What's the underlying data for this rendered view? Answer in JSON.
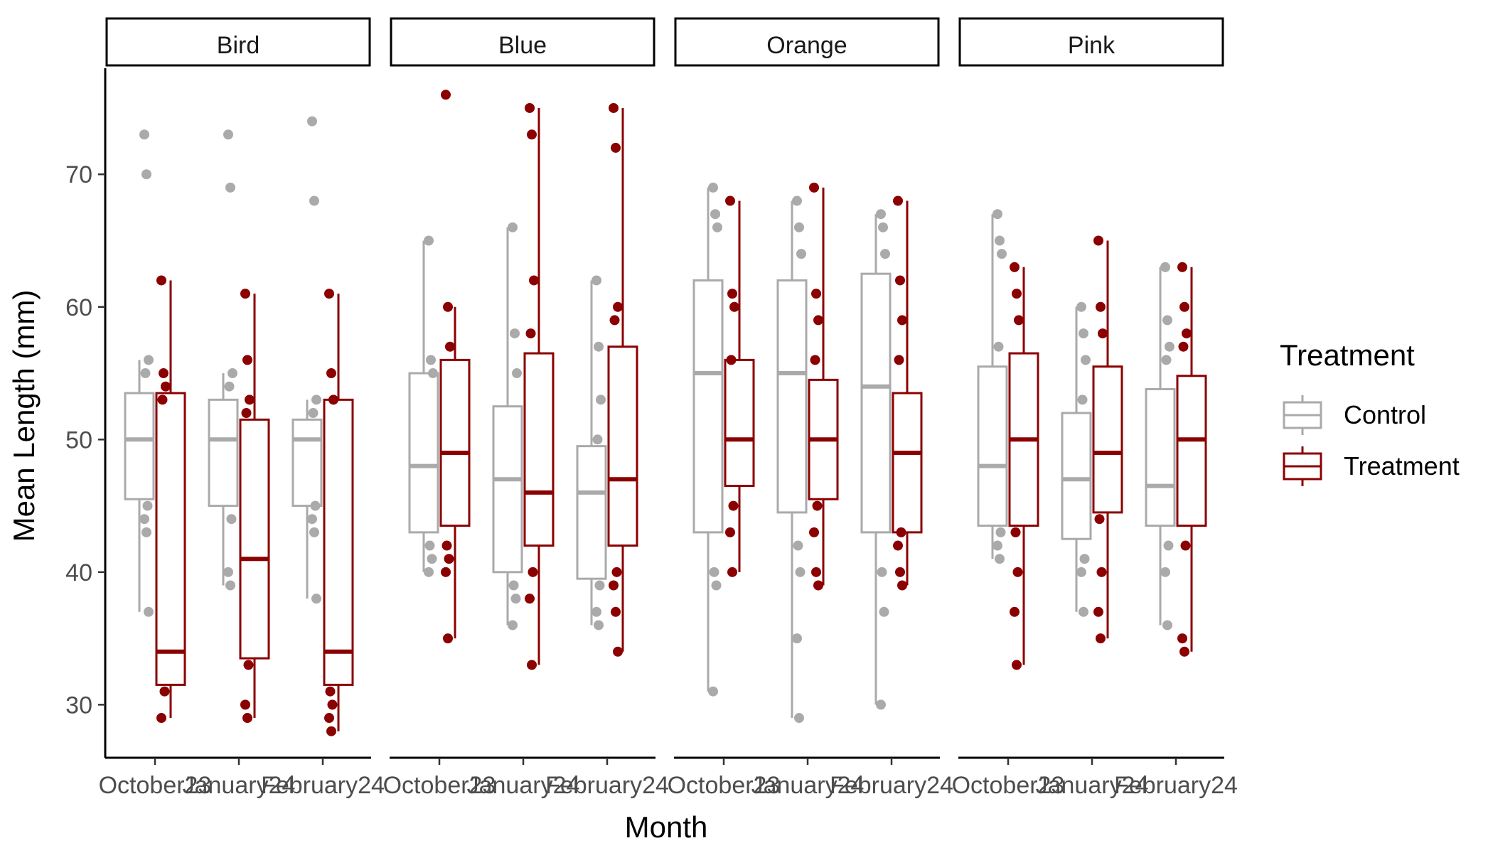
{
  "chart_data": {
    "type": "boxplot",
    "xlabel": "Month",
    "ylabel": "Mean Length (mm)",
    "ylim": [
      26,
      78
    ],
    "yticks": [
      30,
      40,
      50,
      60,
      70
    ],
    "categories": [
      "October23",
      "January24",
      "February24"
    ],
    "facets": [
      "Bird",
      "Blue",
      "Orange",
      "Pink"
    ],
    "legend": {
      "title": "Treatment",
      "placement": "right",
      "entries": [
        {
          "name": "Control",
          "color": "#aaaaaa"
        },
        {
          "name": "Treatment",
          "color": "#8b0000"
        }
      ]
    },
    "grid": false,
    "panels": [
      {
        "facet": "Bird",
        "groups": [
          {
            "month": "October23",
            "treatment": "Control",
            "lower": 37,
            "q1": 45.5,
            "median": 50,
            "q3": 53.5,
            "upper": 56,
            "points": [
              73,
              70,
              56,
              55,
              45,
              44,
              43,
              37
            ]
          },
          {
            "month": "October23",
            "treatment": "Treatment",
            "lower": 29,
            "q1": 31.5,
            "median": 34,
            "q3": 53.5,
            "upper": 62,
            "points": [
              62,
              55,
              54,
              53,
              31,
              29
            ]
          },
          {
            "month": "January24",
            "treatment": "Control",
            "lower": 39,
            "q1": 45,
            "median": 50,
            "q3": 53,
            "upper": 55,
            "points": [
              73,
              69,
              55,
              54,
              44,
              40,
              39
            ]
          },
          {
            "month": "January24",
            "treatment": "Treatment",
            "lower": 29,
            "q1": 33.5,
            "median": 41,
            "q3": 51.5,
            "upper": 61,
            "points": [
              61,
              56,
              53,
              52,
              33,
              30,
              29
            ]
          },
          {
            "month": "February24",
            "treatment": "Control",
            "lower": 38,
            "q1": 45,
            "median": 50,
            "q3": 51.5,
            "upper": 53,
            "points": [
              74,
              68,
              53,
              52,
              45,
              44,
              43,
              38
            ]
          },
          {
            "month": "February24",
            "treatment": "Treatment",
            "lower": 28,
            "q1": 31.5,
            "median": 34,
            "q3": 53,
            "upper": 61,
            "points": [
              61,
              55,
              53,
              31,
              30,
              29,
              28
            ]
          }
        ]
      },
      {
        "facet": "Blue",
        "groups": [
          {
            "month": "October23",
            "treatment": "Control",
            "lower": 40,
            "q1": 43,
            "median": 48,
            "q3": 55,
            "upper": 65,
            "points": [
              65,
              56,
              55,
              42,
              41,
              40
            ]
          },
          {
            "month": "October23",
            "treatment": "Treatment",
            "lower": 35,
            "q1": 43.5,
            "median": 49,
            "q3": 56,
            "upper": 60,
            "points": [
              76,
              60,
              57,
              42,
              41,
              40,
              35
            ]
          },
          {
            "month": "January24",
            "treatment": "Control",
            "lower": 36,
            "q1": 40,
            "median": 47,
            "q3": 52.5,
            "upper": 66,
            "points": [
              66,
              58,
              55,
              39,
              38,
              36
            ]
          },
          {
            "month": "January24",
            "treatment": "Treatment",
            "lower": 33,
            "q1": 42,
            "median": 46,
            "q3": 56.5,
            "upper": 75,
            "points": [
              75,
              73,
              62,
              58,
              40,
              38,
              33
            ]
          },
          {
            "month": "February24",
            "treatment": "Control",
            "lower": 36,
            "q1": 39.5,
            "median": 46,
            "q3": 49.5,
            "upper": 62,
            "points": [
              62,
              57,
              53,
              50,
              39,
              37,
              36
            ]
          },
          {
            "month": "February24",
            "treatment": "Treatment",
            "lower": 34,
            "q1": 42,
            "median": 47,
            "q3": 57,
            "upper": 75,
            "points": [
              75,
              72,
              60,
              59,
              40,
              39,
              37,
              34
            ]
          }
        ]
      },
      {
        "facet": "Orange",
        "groups": [
          {
            "month": "October23",
            "treatment": "Control",
            "lower": 31,
            "q1": 43,
            "median": 55,
            "q3": 62,
            "upper": 69,
            "points": [
              69,
              67,
              66,
              40,
              39,
              31
            ]
          },
          {
            "month": "October23",
            "treatment": "Treatment",
            "lower": 40,
            "q1": 46.5,
            "median": 50,
            "q3": 56,
            "upper": 68,
            "points": [
              68,
              61,
              60,
              56,
              45,
              43,
              40
            ]
          },
          {
            "month": "January24",
            "treatment": "Control",
            "lower": 29,
            "q1": 44.5,
            "median": 55,
            "q3": 62,
            "upper": 68,
            "points": [
              68,
              66,
              64,
              42,
              40,
              35,
              29
            ]
          },
          {
            "month": "January24",
            "treatment": "Treatment",
            "lower": 39,
            "q1": 45.5,
            "median": 50,
            "q3": 54.5,
            "upper": 69,
            "points": [
              69,
              61,
              59,
              56,
              45,
              43,
              40,
              39
            ]
          },
          {
            "month": "February24",
            "treatment": "Control",
            "lower": 30,
            "q1": 43,
            "median": 54,
            "q3": 62.5,
            "upper": 67,
            "points": [
              67,
              66,
              64,
              40,
              37,
              30
            ]
          },
          {
            "month": "February24",
            "treatment": "Treatment",
            "lower": 39,
            "q1": 43,
            "median": 49,
            "q3": 53.5,
            "upper": 68,
            "points": [
              68,
              62,
              59,
              56,
              43,
              42,
              40,
              39
            ]
          }
        ]
      },
      {
        "facet": "Pink",
        "groups": [
          {
            "month": "October23",
            "treatment": "Control",
            "lower": 41,
            "q1": 43.5,
            "median": 48,
            "q3": 55.5,
            "upper": 67,
            "points": [
              67,
              65,
              64,
              57,
              43,
              42,
              41
            ]
          },
          {
            "month": "October23",
            "treatment": "Treatment",
            "lower": 33,
            "q1": 43.5,
            "median": 50,
            "q3": 56.5,
            "upper": 63,
            "points": [
              63,
              61,
              59,
              43,
              40,
              37,
              33
            ]
          },
          {
            "month": "January24",
            "treatment": "Control",
            "lower": 37,
            "q1": 42.5,
            "median": 47,
            "q3": 52,
            "upper": 60,
            "points": [
              60,
              58,
              56,
              53,
              41,
              40,
              37
            ]
          },
          {
            "month": "January24",
            "treatment": "Treatment",
            "lower": 35,
            "q1": 44.5,
            "median": 49,
            "q3": 55.5,
            "upper": 65,
            "points": [
              65,
              60,
              58,
              44,
              40,
              37,
              35
            ]
          },
          {
            "month": "February24",
            "treatment": "Control",
            "lower": 36,
            "q1": 43.5,
            "median": 46.5,
            "q3": 53.8,
            "upper": 63,
            "points": [
              63,
              59,
              57,
              56,
              42,
              40,
              36
            ]
          },
          {
            "month": "February24",
            "treatment": "Treatment",
            "lower": 34,
            "q1": 43.5,
            "median": 50,
            "q3": 54.8,
            "upper": 63,
            "points": [
              63,
              60,
              58,
              57,
              42,
              35,
              34
            ]
          }
        ]
      }
    ]
  }
}
